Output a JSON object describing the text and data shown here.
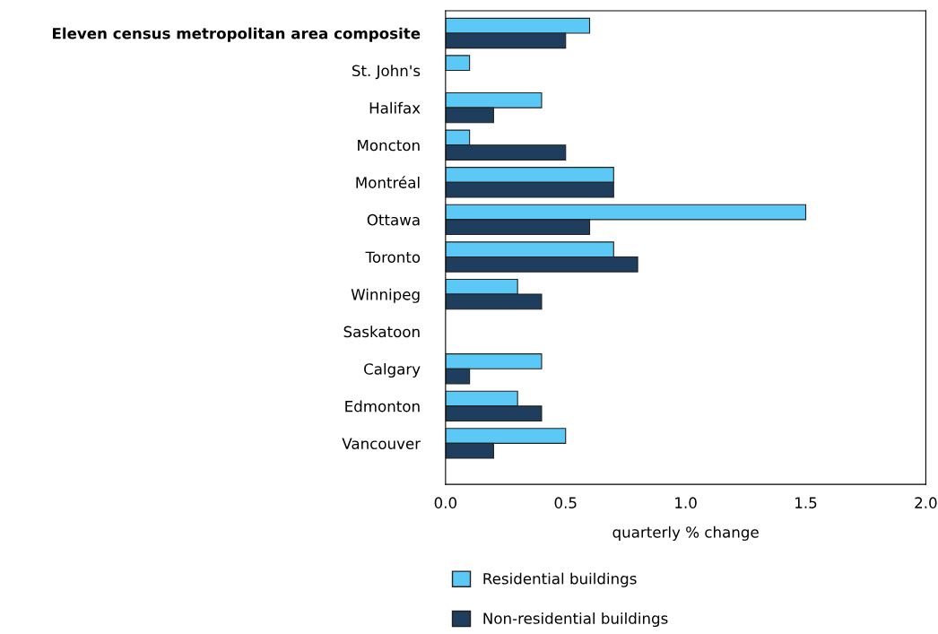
{
  "chart_data": {
    "type": "bar",
    "orientation": "horizontal",
    "xlabel": "quarterly % change",
    "categories": [
      "Eleven census metropolitan area composite",
      "St. John's",
      "Halifax",
      "Moncton",
      "Montréal",
      "Ottawa",
      "Toronto",
      "Winnipeg",
      "Saskatoon",
      "Calgary",
      "Edmonton",
      "Vancouver"
    ],
    "series": [
      {
        "name": "Residential buildings",
        "color": "#5bc8f5",
        "values": [
          0.6,
          0.1,
          0.4,
          0.1,
          0.7,
          1.5,
          0.7,
          0.3,
          0,
          0.4,
          0.3,
          0.5
        ]
      },
      {
        "name": "Non-residential buildings",
        "color": "#1f3d5c",
        "values": [
          0.5,
          0,
          0.2,
          0.5,
          0.7,
          0.6,
          0.8,
          0.4,
          0,
          0.1,
          0.4,
          0.2
        ]
      }
    ],
    "xlim": [
      0,
      2
    ],
    "xticks": [
      {
        "value": 0,
        "label": "0.0"
      },
      {
        "value": 0.5,
        "label": "0.5"
      },
      {
        "value": 1,
        "label": "1.0"
      },
      {
        "value": 1.5,
        "label": "1.5"
      },
      {
        "value": 2,
        "label": "2.0"
      }
    ],
    "grid": false,
    "legend": "bottom"
  }
}
